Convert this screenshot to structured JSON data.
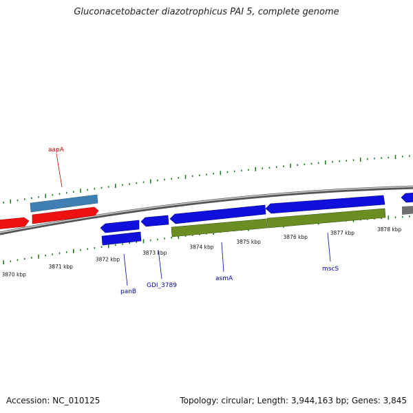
{
  "title": "Gluconacetobacter diazotrophicus PAI 5, complete genome",
  "footer": {
    "accession": "Accession: NC_010125",
    "summary": "Topology: circular; Length: 3,944,163 bp; Genes: 3,845"
  },
  "colors": {
    "backbone": "#8c8c8c",
    "forward_gene": "#ee1111",
    "forward_gene_alt": "#3f7fb4",
    "reverse_gene": "#1010dd",
    "olive_gene": "#6b8e23",
    "gray_gene": "#707070",
    "gc_marks": "#1f7a1f",
    "label_forward": "#cc0000",
    "label_reverse": "#0000aa"
  },
  "ticks": [
    {
      "kbp": 3870,
      "label": "3870 kbp"
    },
    {
      "kbp": 3871,
      "label": "3871 kbp"
    },
    {
      "kbp": 3872,
      "label": "3872 kbp"
    },
    {
      "kbp": 3873,
      "label": "3873 kbp"
    },
    {
      "kbp": 3874,
      "label": "3874 kbp"
    },
    {
      "kbp": 3875,
      "label": "3875 kbp"
    },
    {
      "kbp": 3876,
      "label": "3876 kbp"
    },
    {
      "kbp": 3877,
      "label": "3877 kbp"
    },
    {
      "kbp": 3878,
      "label": "3878 kbp"
    }
  ],
  "gene_labels": [
    {
      "name": "aapA",
      "strand": "forward"
    },
    {
      "name": "panB",
      "strand": "reverse"
    },
    {
      "name": "GDI_3789",
      "strand": "reverse"
    },
    {
      "name": "asmA",
      "strand": "reverse"
    },
    {
      "name": "mscS",
      "strand": "reverse"
    }
  ]
}
